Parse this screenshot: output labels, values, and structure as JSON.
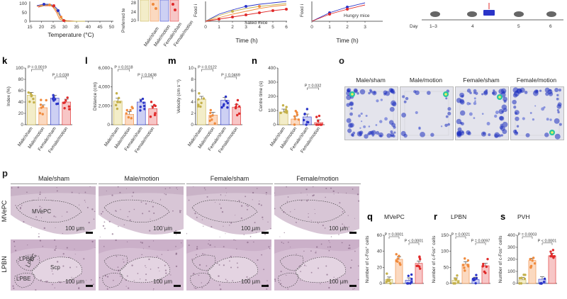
{
  "panels": {
    "k": {
      "label": "k",
      "ylabel": "Index (%)",
      "yticks": [
        "0",
        "20",
        "40",
        "60",
        "80",
        "100"
      ],
      "pvals": [
        "P = 0.0019",
        "P = 0.038"
      ]
    },
    "l": {
      "label": "l",
      "ylabel": "Distance (cm)",
      "yticks": [
        "0",
        "2,000",
        "4,000",
        "6,000"
      ],
      "pvals": [
        "P = 0.0118",
        "P = 0.0438"
      ]
    },
    "m": {
      "label": "m",
      "ylabel": "Velocity (cm s⁻¹)",
      "yticks": [
        "0",
        "2",
        "4",
        "6",
        "8",
        "10"
      ],
      "pvals": [
        "P = 0.0122",
        "P = 0.0469"
      ]
    },
    "n": {
      "label": "n",
      "ylabel": "Centre time (s)",
      "yticks": [
        "0",
        "100",
        "200",
        "300",
        "400"
      ],
      "pvals": [
        "P = 0.032"
      ]
    },
    "o": {
      "label": "o",
      "titles": [
        "Male/sham",
        "Male/motion",
        "Female/sham",
        "Female/motion"
      ]
    },
    "p": {
      "label": "p",
      "titles": [
        "Male/sham",
        "Male/motion",
        "Female/sham",
        "Female/motion"
      ],
      "rows": [
        "MVePC",
        "LPBN"
      ],
      "region_labels": [
        "MVePC",
        "LPBD",
        "LPBC",
        "Scp",
        "LPBE"
      ],
      "scale": "100 µm"
    },
    "q": {
      "label": "q",
      "title": "MVePC",
      "ylabel": "Number of c-Fos⁺ cells",
      "yticks": [
        "0",
        "20",
        "40",
        "60"
      ],
      "pvals": [
        "P = 0.0001",
        "P < 0.0001"
      ]
    },
    "r": {
      "label": "r",
      "title": "LPBN",
      "ylabel": "Number of c-Fos⁺ cells",
      "yticks": [
        "0",
        "50",
        "100",
        "150"
      ],
      "pvals": [
        "P = 0.0021",
        "P = 0.0097"
      ]
    },
    "s": {
      "label": "s",
      "title": "PVH",
      "ylabel": "Number of c-Fos⁺ cells",
      "yticks": [
        "0",
        "100",
        "200",
        "300",
        "400"
      ],
      "pvals": [
        "P = 0.0003",
        "P < 0.0001"
      ]
    }
  },
  "top": {
    "xlabel_temp": "Temperature (°C)",
    "temp_ticks": [
      "15",
      "20",
      "25",
      "30",
      "35",
      "40",
      "45",
      "50"
    ],
    "temp_yticks": [
      "0",
      "50",
      "100"
    ],
    "pref_yticks": [
      "20",
      "24",
      "28"
    ],
    "pref_ylabel": "Preferred te",
    "food_ylabel": "Food i",
    "food_ylabel2": "Food i",
    "time_label": "Time (h)",
    "time_ticks": [
      "0",
      "1",
      "2",
      "3",
      "4",
      "5",
      "6"
    ],
    "time_ticks2": [
      "0",
      "1",
      "2",
      "3"
    ],
    "sated": "Sated mice",
    "hungry": "Hungry mice",
    "day_label": "Day",
    "days": [
      "1–3",
      "4",
      "5",
      "6"
    ]
  },
  "groups": [
    "Male/sham",
    "Male/motion",
    "Female/sham",
    "Female/motion"
  ],
  "colors": {
    "ms": "#c4b04a",
    "mm": "#f08a3c",
    "fs": "#2a34c8",
    "fm": "#e02a2a",
    "bar_ms": "#f3edc9",
    "bar_mm": "#fbd9c0",
    "bar_fs": "#cdd0f3",
    "bar_fm": "#f7c6c6"
  },
  "chart_data": [
    {
      "type": "bar",
      "panel": "k",
      "categories": [
        "Male/sham",
        "Male/motion",
        "Female/sham",
        "Female/motion"
      ],
      "values": [
        52,
        30,
        47,
        40
      ],
      "ylim": [
        0,
        100
      ]
    },
    {
      "type": "bar",
      "panel": "l",
      "categories": [
        "Male/sham",
        "Male/motion",
        "Female/sham",
        "Female/motion"
      ],
      "values": [
        2500,
        1100,
        2400,
        1700
      ],
      "ylim": [
        0,
        6000
      ]
    },
    {
      "type": "bar",
      "panel": "m",
      "categories": [
        "Male/sham",
        "Male/motion",
        "Female/sham",
        "Female/motion"
      ],
      "values": [
        4.5,
        1.7,
        4.3,
        3.1
      ],
      "ylim": [
        0,
        10
      ]
    },
    {
      "type": "bar",
      "panel": "n",
      "categories": [
        "Male/sham",
        "Male/motion",
        "Female/sham",
        "Female/motion"
      ],
      "values": [
        90,
        40,
        55,
        15
      ],
      "ylim": [
        0,
        400
      ]
    },
    {
      "type": "bar",
      "panel": "q",
      "categories": [
        "Male/sham",
        "Male/motion",
        "Female/sham",
        "Female/motion"
      ],
      "values": [
        5,
        30,
        4,
        25
      ],
      "ylim": [
        0,
        60
      ]
    },
    {
      "type": "bar",
      "panel": "r",
      "categories": [
        "Male/sham",
        "Male/motion",
        "Female/sham",
        "Female/motion"
      ],
      "values": [
        10,
        60,
        12,
        55
      ],
      "ylim": [
        0,
        150
      ]
    },
    {
      "type": "bar",
      "panel": "s",
      "categories": [
        "Male/sham",
        "Male/motion",
        "Female/sham",
        "Female/motion"
      ],
      "values": [
        30,
        190,
        35,
        230
      ],
      "ylim": [
        0,
        400
      ]
    }
  ]
}
